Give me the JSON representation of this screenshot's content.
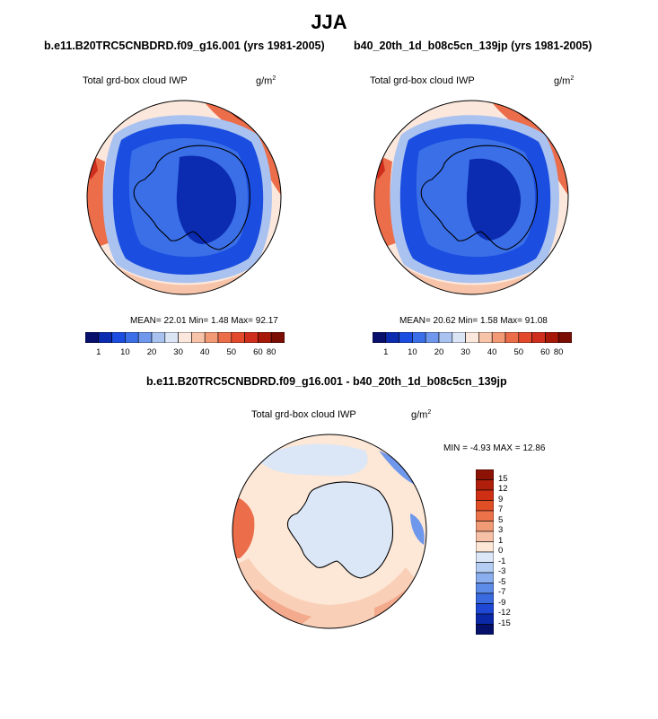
{
  "page": {
    "season": "JJA",
    "diff_title": "b.e11.B20TRC5CNBDRD.f09_g16.001 - b40_20th_1d_b08c5cn_139jp"
  },
  "panels": [
    {
      "case_title": "b.e11.B20TRC5CNBDRD.f09_g16.001 (yrs 1981-2005)",
      "field_title": "Total grd-box cloud IWP",
      "units": "g/m",
      "units_exp": "2",
      "mean_text": "MEAN=  22.01  Min=   1.48  Max=  92.17",
      "stats": {
        "mean": 22.01,
        "min": 1.48,
        "max": 92.17
      }
    },
    {
      "case_title": "b40_20th_1d_b08c5cn_139jp (yrs 1981-2005)",
      "field_title": "Total grd-box cloud IWP",
      "units": "g/m",
      "units_exp": "2",
      "mean_text": "MEAN=  20.62  Min=   1.58  Max=  91.08",
      "stats": {
        "mean": 20.62,
        "min": 1.58,
        "max": 91.08
      }
    }
  ],
  "diff_panel": {
    "field_title": "Total grd-box cloud IWP",
    "units": "g/m",
    "units_exp": "2",
    "minmax_text": "MIN =  -4.93  MAX =  12.86",
    "stats": {
      "min": -4.93,
      "max": 12.86
    }
  },
  "colorbar_main": {
    "labels": [
      "1",
      "10",
      "20",
      "30",
      "40",
      "50",
      "60",
      "80"
    ],
    "colors": [
      "#08106b",
      "#0b2bb0",
      "#1a4de0",
      "#3a6fe8",
      "#6f97ec",
      "#a9c2f0",
      "#dbe5f5",
      "#fbe7dc",
      "#f7c4a9",
      "#f29a76",
      "#ec6d4a",
      "#e34a2c",
      "#d02e1c",
      "#a81808",
      "#7a0d04"
    ]
  },
  "colorbar_diff": {
    "labels": [
      "15",
      "12",
      "9",
      "7",
      "5",
      "3",
      "1",
      "0",
      "-1",
      "-3",
      "-5",
      "-7",
      "-9",
      "-12",
      "-15"
    ],
    "colors": [
      "#8c1206",
      "#b01f0c",
      "#cf3014",
      "#e04e26",
      "#ec7249",
      "#f19a76",
      "#f6c1a6",
      "#fde7d6",
      "#dbe7f7",
      "#b5cdf3",
      "#8aaeee",
      "#5d8be8",
      "#3a6ae0",
      "#1f48d4",
      "#0b28a8",
      "#05116b"
    ]
  },
  "map_colors": {
    "deep": "#0b2bb0",
    "blue": "#1a4de0",
    "mid": "#3a6fe8",
    "light": "#6f97ec",
    "pale": "#a9c2f0",
    "cream": "#fbe7dc",
    "peach": "#f7c4a9",
    "orange": "#ec6d4a",
    "red": "#d02e1c",
    "dark": "#8c1206",
    "diff_base": "#fde7d6",
    "diff_blue": "#dbe7f7"
  }
}
